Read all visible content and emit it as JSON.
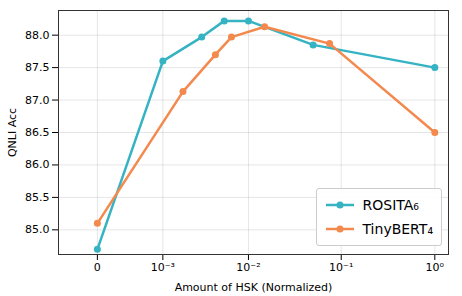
{
  "chart_data": {
    "type": "line",
    "x_label": "Amount of HSK (Normalized)",
    "y_label": "QNLI Acc",
    "log": "x",
    "grid": true,
    "legend": "lower right",
    "xlim": [
      -0.0004,
      1.4
    ],
    "xticks": [
      0,
      {
        "value": 0.001,
        "label": "10⁻³"
      },
      {
        "value": 0.01,
        "label": "10⁻²"
      },
      {
        "value": 0.1,
        "label": "10⁻¹"
      },
      {
        "value": 1,
        "label": "10⁰"
      }
    ],
    "ylim": [
      84.62,
      88.38
    ],
    "yticks": [
      {
        "value": 85,
        "label": "85.0"
      },
      {
        "value": 85.5,
        "label": "85.5"
      },
      {
        "value": 86,
        "label": "86.0"
      },
      {
        "value": 86.5,
        "label": "86.5"
      },
      {
        "value": 87,
        "label": "87.0"
      },
      {
        "value": 87.5,
        "label": "87.5"
      },
      {
        "value": 88,
        "label": "88.0"
      }
    ],
    "series": [
      {
        "name": "ROSITA₆",
        "color": "#35b3c3",
        "marker": "circle",
        "x": [
          0,
          0.001,
          0.003,
          0.0054,
          0.01,
          0.05,
          1
        ],
        "values": [
          84.7,
          87.6,
          87.97,
          88.22,
          88.22,
          87.85,
          87.5
        ]
      },
      {
        "name": "TinyBERT₄",
        "color": "#f3894d",
        "marker": "circle",
        "x": [
          0,
          0.0018,
          0.0043,
          0.0065,
          0.015,
          0.075,
          1
        ],
        "values": [
          85.1,
          87.13,
          87.7,
          87.97,
          88.13,
          87.87,
          86.5
        ]
      }
    ]
  }
}
